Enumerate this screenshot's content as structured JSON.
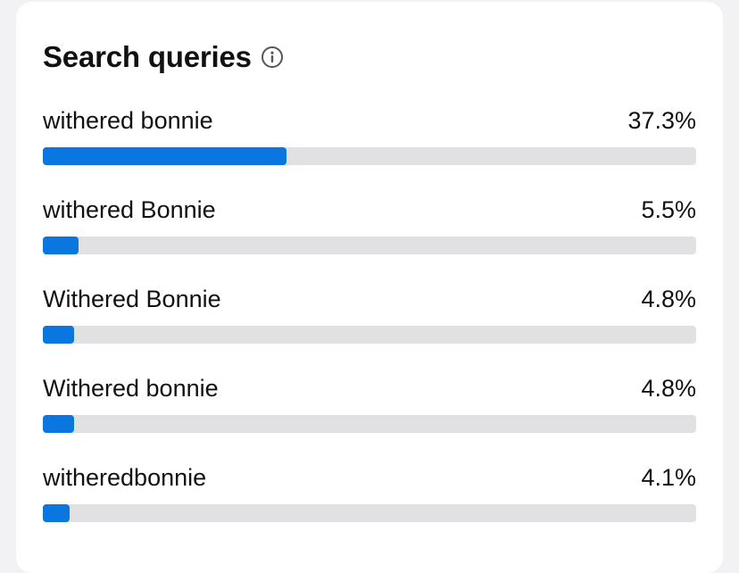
{
  "card": {
    "title": "Search queries",
    "info_icon": "info-circle-icon"
  },
  "queries": [
    {
      "label": "withered bonnie",
      "percent_text": "37.3%",
      "fraction": 0.373
    },
    {
      "label": "withered Bonnie",
      "percent_text": "5.5%",
      "fraction": 0.055
    },
    {
      "label": "Withered Bonnie",
      "percent_text": "4.8%",
      "fraction": 0.048
    },
    {
      "label": "Withered bonnie",
      "percent_text": "4.8%",
      "fraction": 0.048
    },
    {
      "label": "witheredbonnie",
      "percent_text": "4.1%",
      "fraction": 0.041
    }
  ],
  "colors": {
    "bar_fill": "#0a76e0",
    "bar_track": "#e1e1e3"
  }
}
